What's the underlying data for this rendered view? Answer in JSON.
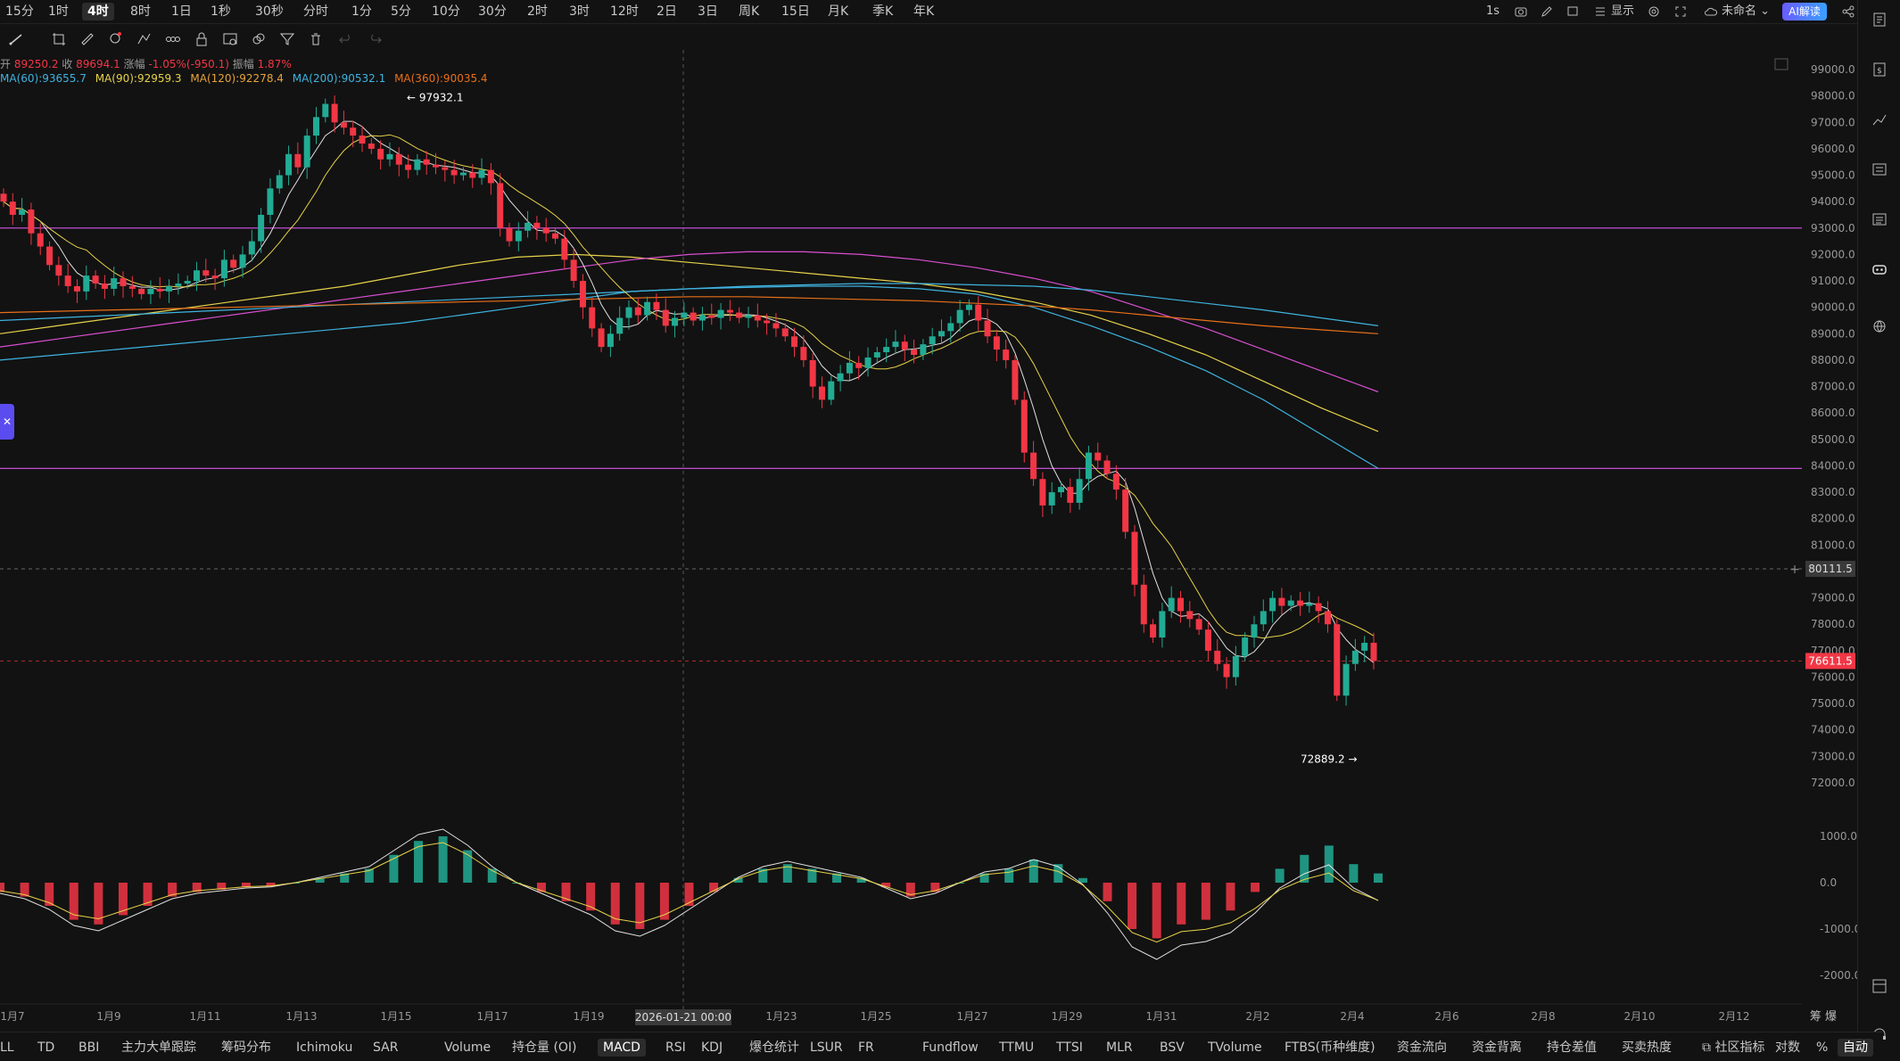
{
  "topbar": {
    "timeframes": [
      "15分",
      "1时",
      "4时",
      "8时",
      "1日",
      "1秒",
      "30秒",
      "分时",
      "1分",
      "5分",
      "10分",
      "30分",
      "2时",
      "3时",
      "12时",
      "2日",
      "3日",
      "周K",
      "15日",
      "月K",
      "季K",
      "年K"
    ],
    "active_timeframe": "4时",
    "interval": "1s",
    "display_label": "显示",
    "layout_name": "未命名",
    "ai_label": "AI解读"
  },
  "legend": {
    "open": "89250.2",
    "close": "89694.1",
    "change": "-1.05%(-950.1)",
    "amplitude": "1.87%",
    "ma60": "MA(60):93655.7",
    "ma90": "MA(90):92959.3",
    "ma120": "MA(120):92278.4",
    "ma200": "MA(200):90532.1",
    "ma360": "MA(360):90035.4"
  },
  "legend_labels": {
    "open_label": "开",
    "close_label": "收",
    "change_label": "涨幅",
    "amplitude_label": "振幅"
  },
  "colors": {
    "up": "#22ab94",
    "down": "#f23645",
    "ma60": "#3fb3e0",
    "ma90": "#e6d24a",
    "ma120": "#e8a33a",
    "ma200": "#3fb3e0",
    "ma360": "#e8701a",
    "purple_line": "#c04fd0",
    "price_tag": "#f23645",
    "crosshair_tag": "#3a3a3a"
  },
  "chart_data": {
    "type": "candlestick",
    "price_axis": [
      "99000.0",
      "98000.0",
      "97000.0",
      "96000.0",
      "95000.0",
      "94000.0",
      "93000.0",
      "92000.0",
      "91000.0",
      "90000.0",
      "89000.0",
      "88000.0",
      "87000.0",
      "86000.0",
      "85000.0",
      "84000.0",
      "83000.0",
      "82000.0",
      "81000.0",
      "80000.0",
      "79000.0",
      "78000.0",
      "77000.0",
      "76000.0",
      "75000.0",
      "74000.0",
      "73000.0",
      "72000.0"
    ],
    "ylim": [
      72000,
      99000
    ],
    "macd_axis": [
      "1000.0",
      "0.0",
      "-1000.0",
      "-2000.0"
    ],
    "date_axis": [
      "1月7",
      "1月9",
      "1月11",
      "1月13",
      "1月15",
      "1月17",
      "1月19",
      "1月23",
      "1月25",
      "1月27",
      "1月29",
      "1月31",
      "2月2",
      "2月4",
      "2月6",
      "2月8",
      "2月10",
      "2月12"
    ],
    "crosshair_date": "2026-01-21 00:00",
    "crosshair_price": "80111.5",
    "last_price": "76611.5",
    "high_label": "97932.1",
    "low_label": "72889.2",
    "horizontal_lines": [
      93000,
      83900
    ],
    "close_series": [
      94000,
      93500,
      93700,
      92800,
      92300,
      91600,
      91200,
      90800,
      90600,
      91200,
      90900,
      90700,
      91100,
      90800,
      90700,
      90500,
      90700,
      90600,
      90800,
      90900,
      91000,
      91400,
      91200,
      91100,
      91800,
      91500,
      92000,
      92500,
      93500,
      94500,
      95000,
      95800,
      95300,
      96500,
      97200,
      97700,
      97000,
      96800,
      96500,
      96200,
      96000,
      95600,
      95800,
      95400,
      95200,
      95600,
      95400,
      95300,
      95200,
      95000,
      95100,
      94900,
      95200,
      94700,
      93000,
      92500,
      92900,
      93200,
      93000,
      92800,
      92600,
      91800,
      91000,
      90000,
      89200,
      88500,
      89000,
      89600,
      90000,
      89700,
      90200,
      89900,
      89300,
      89600,
      89800,
      89500,
      89700,
      89600,
      89900,
      89800,
      89600,
      89700,
      89500,
      89400,
      89200,
      88900,
      88500,
      88000,
      87000,
      86500,
      87200,
      87500,
      87900,
      87700,
      88100,
      88300,
      88500,
      88700,
      88400,
      88200,
      88600,
      88900,
      89100,
      89400,
      89900,
      90100,
      89500,
      88900,
      88400,
      88000,
      86500,
      84500,
      83500,
      82500,
      83000,
      83200,
      82600,
      83500,
      84500,
      84200,
      83700,
      83100,
      81500,
      79500,
      78000,
      77500,
      78500,
      79000,
      78500,
      78200,
      77800,
      77000,
      76500,
      76000,
      76800,
      77500,
      78000,
      78500,
      79000,
      78700,
      78900,
      78700,
      78800,
      78500,
      78000,
      75300,
      76500,
      77000,
      77300,
      76611.5
    ],
    "ma_series": {
      "ma60": [
        88000,
        88200,
        88400,
        88600,
        88800,
        89000,
        89200,
        89400,
        89700,
        90000,
        90300,
        90600,
        90700,
        90750,
        90800,
        90800,
        90700,
        90500,
        90000,
        89300,
        88500,
        87600,
        86500,
        85200,
        83900
      ],
      "ma90": [
        89000,
        89300,
        89600,
        89900,
        90200,
        90500,
        90800,
        91200,
        91600,
        91900,
        92000,
        91900,
        91700,
        91500,
        91300,
        91100,
        90900,
        90600,
        90200,
        89700,
        89000,
        88200,
        87200,
        86200,
        85300
      ],
      "ma120": [
        88500,
        88800,
        89100,
        89400,
        89700,
        90000,
        90300,
        90600,
        90900,
        91200,
        91500,
        91800,
        92000,
        92100,
        92100,
        92000,
        91800,
        91500,
        91100,
        90600,
        89900,
        89200,
        88400,
        87600,
        86800
      ],
      "ma200": [
        89500,
        89600,
        89700,
        89800,
        89900,
        90000,
        90100,
        90200,
        90300,
        90400,
        90500,
        90600,
        90700,
        90800,
        90850,
        90900,
        90900,
        90850,
        90800,
        90650,
        90400,
        90150,
        89900,
        89600,
        89300
      ],
      "ma360": [
        89800,
        89850,
        89900,
        89950,
        90000,
        90050,
        90100,
        90150,
        90200,
        90250,
        90300,
        90350,
        90400,
        90400,
        90350,
        90300,
        90250,
        90150,
        90050,
        89900,
        89700,
        89500,
        89300,
        89150,
        89000
      ]
    },
    "macd_hist": [
      -200,
      -300,
      -500,
      -800,
      -900,
      -700,
      -500,
      -300,
      -200,
      -150,
      -100,
      -80,
      0,
      100,
      200,
      300,
      600,
      900,
      1000,
      700,
      300,
      0,
      -200,
      -400,
      -600,
      -900,
      -1000,
      -800,
      -500,
      -200,
      100,
      300,
      400,
      300,
      200,
      100,
      -100,
      -300,
      -200,
      0,
      200,
      300,
      500,
      400,
      100,
      -400,
      -1000,
      -1200,
      -900,
      -800,
      -600,
      -200,
      300,
      600,
      800,
      400,
      200
    ]
  },
  "bottombar": {
    "items": [
      "LL",
      "TD",
      "BBI",
      "主力大单跟踪",
      "筹码分布",
      "Ichimoku",
      "SAR",
      "Volume",
      "持仓量 (OI)",
      "MACD",
      "RSI",
      "KDJ",
      "爆仓统计",
      "LSUR",
      "FR",
      "Fundflow",
      "TTMU",
      "TTSI",
      "MLR",
      "BSV",
      "TVolume",
      "FTBS(币种维度)",
      "资金流向",
      "资金背离",
      "持仓差值",
      "买卖热度"
    ],
    "active": "MACD",
    "community": "社区指标",
    "log_label": "对数",
    "pct_label": "%",
    "auto_label": "自动"
  },
  "right_corner": {
    "label": "筹 爆"
  }
}
